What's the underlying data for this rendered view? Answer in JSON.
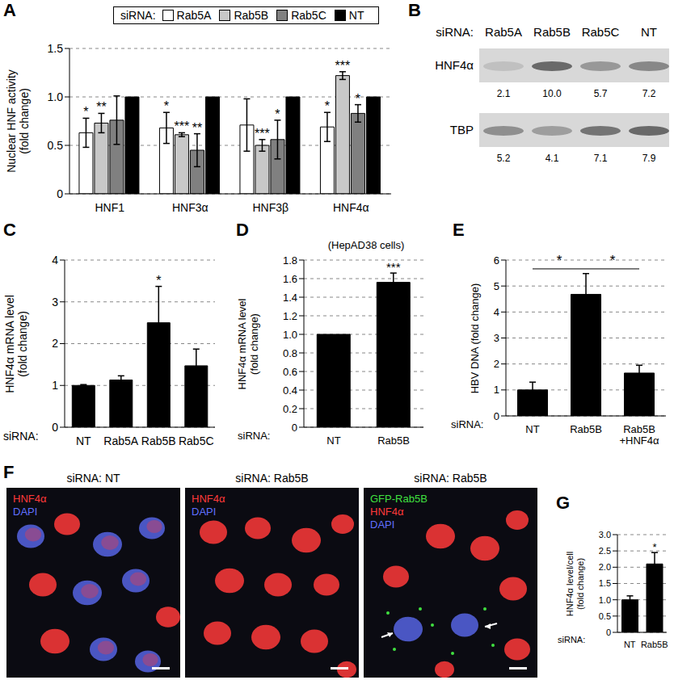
{
  "chart_data": [
    {
      "panel": "A",
      "type": "bar",
      "categories": [
        "HNF1",
        "HNF3α",
        "HNF3β",
        "HNF4α"
      ],
      "y_label": [
        "Nuclear HNF activity",
        "(fold change)"
      ],
      "legend_title": "siRNA:",
      "legend": "top",
      "series": [
        {
          "name": "Rab5A",
          "color": "#ffffff",
          "values": [
            0.63,
            0.68,
            0.71,
            0.69
          ],
          "errors": [
            0.15,
            0.16,
            0.27,
            0.15
          ],
          "significance": [
            "*",
            "*",
            null,
            "*"
          ]
        },
        {
          "name": "Rab5B",
          "color": "#c8c8c8",
          "values": [
            0.73,
            0.61,
            0.5,
            1.22
          ],
          "errors": [
            0.1,
            0.02,
            0.06,
            0.04
          ],
          "significance": [
            "**",
            "***",
            "***",
            "***"
          ]
        },
        {
          "name": "Rab5C",
          "color": "#808080",
          "values": [
            0.76,
            0.45,
            0.56,
            0.83
          ],
          "errors": [
            0.25,
            0.17,
            0.2,
            0.09
          ],
          "significance": [
            null,
            "**",
            "*",
            "*"
          ]
        },
        {
          "name": "NT",
          "color": "#000000",
          "values": [
            1,
            1,
            1,
            1
          ]
        }
      ],
      "ylim": [
        0,
        1.5
      ],
      "yticks": [
        0,
        0.5,
        {
          "value": 1,
          "label": "1.0"
        },
        1.5
      ],
      "grid": true
    },
    {
      "panel": "C",
      "type": "bar",
      "x_label": "siRNA:",
      "y_label": [
        "HNF4α mRNA level",
        "(fold change)"
      ],
      "categories": [
        "NT",
        "Rab5A",
        "Rab5B",
        "Rab5C"
      ],
      "values": [
        1,
        1.13,
        2.5,
        1.47
      ],
      "errors": [
        0.02,
        0.1,
        0.87,
        0.4
      ],
      "significance": [
        null,
        null,
        "*",
        null
      ],
      "color": "#000000",
      "ylim": [
        0,
        4
      ],
      "yticks": [
        0,
        1,
        2,
        3,
        4
      ],
      "grid": true
    },
    {
      "panel": "D",
      "type": "bar",
      "title": "(HepAD38 cells)",
      "x_label": "siRNA:",
      "y_label": [
        "HNF4α mRNA level",
        "(fold change)"
      ],
      "categories": [
        "NT",
        "Rab5B"
      ],
      "values": [
        1,
        1.56
      ],
      "errors": [
        null,
        0.1
      ],
      "significance": [
        null,
        "***"
      ],
      "color": "#000000",
      "ylim": [
        0,
        1.8
      ],
      "yticks": [
        0,
        0.2,
        0.4,
        0.6,
        0.8,
        {
          "value": 1,
          "label": "1.0"
        },
        1.2,
        1.4,
        1.6,
        1.8
      ],
      "grid": true
    },
    {
      "panel": "E",
      "type": "bar",
      "x_label": "siRNA:",
      "y_label": [
        "HBV DNA (fold change)"
      ],
      "categories": [
        "NT",
        "Rab5B",
        "Rab5B\n+HNF4α"
      ],
      "values": [
        1,
        4.68,
        1.65
      ],
      "errors": [
        0.3,
        0.8,
        0.3
      ],
      "comparisons": [
        {
          "between": [
            "NT",
            "Rab5B"
          ],
          "label": "*"
        },
        {
          "between": [
            "Rab5B",
            "Rab5B\n+HNF4α"
          ],
          "label": "*"
        }
      ],
      "color": "#000000",
      "ylim": [
        0,
        6
      ],
      "yticks": [
        0,
        1,
        2,
        3,
        4,
        5,
        6
      ],
      "grid": true
    },
    {
      "panel": "G",
      "type": "bar",
      "x_label": "siRNA:",
      "y_label": [
        "HNF4α level/cell",
        "(fold change)"
      ],
      "categories": [
        "NT",
        "Rab5B"
      ],
      "values": [
        1,
        2.1
      ],
      "errors": [
        0.12,
        0.35
      ],
      "significance": [
        null,
        "*"
      ],
      "color": "#000000",
      "ylim": [
        0,
        3
      ],
      "yticks": [
        0,
        0.5,
        {
          "value": 1,
          "label": "1.0"
        },
        1.5,
        {
          "value": 2,
          "label": "2.0"
        },
        2.5,
        {
          "value": 3,
          "label": "3.0"
        }
      ],
      "grid": true
    }
  ],
  "blot": {
    "panel": "B",
    "lane_title": "siRNA:",
    "lanes": [
      "Rab5A",
      "Rab5B",
      "Rab5C",
      "NT"
    ],
    "rows": [
      {
        "name": "HNF4α",
        "quantities": [
          "2.1",
          "10.0",
          "5.7",
          "7.2"
        ]
      },
      {
        "name": "TBP",
        "quantities": [
          "5.2",
          "4.1",
          "7.1",
          "7.9"
        ]
      }
    ]
  },
  "micrographs": {
    "panel": "F",
    "images": [
      {
        "title": "siRNA: NT",
        "channels": [
          {
            "name": "HNF4α",
            "color": "#ff3a3a"
          },
          {
            "name": "DAPI",
            "color": "#6070ff"
          }
        ]
      },
      {
        "title": "siRNA: Rab5B",
        "channels": [
          {
            "name": "HNF4α",
            "color": "#ff3a3a"
          },
          {
            "name": "DAPI",
            "color": "#6070ff"
          }
        ]
      },
      {
        "title": "siRNA: Rab5B",
        "channels": [
          {
            "name": "GFP-Rab5B",
            "color": "#40e040"
          },
          {
            "name": "HNF4α",
            "color": "#ff3a3a"
          },
          {
            "name": "DAPI",
            "color": "#6070ff"
          }
        ]
      }
    ]
  }
}
